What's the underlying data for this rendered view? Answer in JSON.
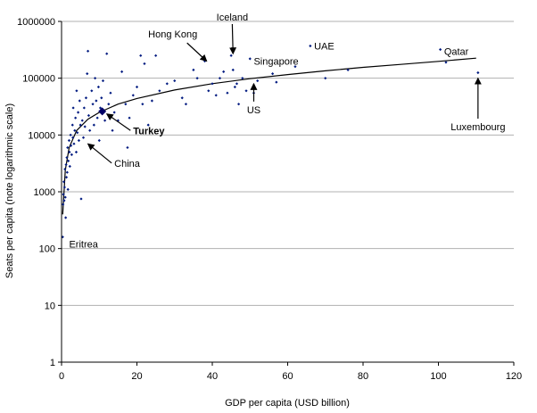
{
  "chart_data": {
    "type": "scatter",
    "xlabel": "GDP per capita (USD billion)",
    "ylabel": "Seats per capita (note logarithmic scale)",
    "xlim": [
      0,
      120
    ],
    "ylim": [
      1,
      1000000
    ],
    "yscale": "log",
    "grid": "horizontal",
    "legend": "none",
    "x_ticks": [
      "0",
      "20",
      "40",
      "60",
      "80",
      "100",
      "120"
    ],
    "y_ticks": [
      "1",
      "10",
      "100",
      "1000",
      "10000",
      "100000",
      "1000000"
    ],
    "point_color": "#001a80",
    "points": [
      {
        "x": 0.3,
        "y": 160
      },
      {
        "x": 0.4,
        "y": 600
      },
      {
        "x": 0.5,
        "y": 900
      },
      {
        "x": 0.6,
        "y": 1500
      },
      {
        "x": 0.7,
        "y": 700
      },
      {
        "x": 0.8,
        "y": 1200
      },
      {
        "x": 0.9,
        "y": 2500
      },
      {
        "x": 1.0,
        "y": 800
      },
      {
        "x": 1.1,
        "y": 350
      },
      {
        "x": 1.2,
        "y": 3000
      },
      {
        "x": 1.3,
        "y": 1800
      },
      {
        "x": 1.4,
        "y": 4000
      },
      {
        "x": 1.5,
        "y": 2200
      },
      {
        "x": 1.6,
        "y": 6000
      },
      {
        "x": 1.7,
        "y": 1100
      },
      {
        "x": 1.8,
        "y": 3500
      },
      {
        "x": 2.0,
        "y": 8000
      },
      {
        "x": 2.1,
        "y": 5000
      },
      {
        "x": 2.2,
        "y": 2800
      },
      {
        "x": 2.4,
        "y": 10000
      },
      {
        "x": 2.5,
        "y": 6500
      },
      {
        "x": 2.7,
        "y": 4500
      },
      {
        "x": 2.9,
        "y": 15000
      },
      {
        "x": 3.0,
        "y": 9000
      },
      {
        "x": 3.1,
        "y": 30000
      },
      {
        "x": 3.3,
        "y": 7000
      },
      {
        "x": 3.5,
        "y": 12000
      },
      {
        "x": 3.7,
        "y": 20000
      },
      {
        "x": 3.9,
        "y": 5000
      },
      {
        "x": 4.0,
        "y": 60000
      },
      {
        "x": 4.2,
        "y": 11000
      },
      {
        "x": 4.4,
        "y": 25000
      },
      {
        "x": 4.6,
        "y": 8000
      },
      {
        "x": 4.8,
        "y": 40000
      },
      {
        "x": 5.0,
        "y": 15000
      },
      {
        "x": 5.2,
        "y": 750
      },
      {
        "x": 5.5,
        "y": 18000
      },
      {
        "x": 5.8,
        "y": 9000
      },
      {
        "x": 6.0,
        "y": 30000
      },
      {
        "x": 6.2,
        "y": 14000
      },
      {
        "x": 6.5,
        "y": 45000
      },
      {
        "x": 6.8,
        "y": 120000
      },
      {
        "x": 7.0,
        "y": 300000
      },
      {
        "x": 7.2,
        "y": 22000
      },
      {
        "x": 7.5,
        "y": 12000
      },
      {
        "x": 7.8,
        "y": 6000
      },
      {
        "x": 8.0,
        "y": 60000
      },
      {
        "x": 8.3,
        "y": 35000
      },
      {
        "x": 8.6,
        "y": 15000
      },
      {
        "x": 8.9,
        "y": 100000
      },
      {
        "x": 9.2,
        "y": 40000
      },
      {
        "x": 9.5,
        "y": 20000
      },
      {
        "x": 9.8,
        "y": 70000
      },
      {
        "x": 10.0,
        "y": 8000
      },
      {
        "x": 10.3,
        "y": 30000
      },
      {
        "x": 10.6,
        "y": 45000
      },
      {
        "x": 11.0,
        "y": 90000
      },
      {
        "x": 11.5,
        "y": 18000
      },
      {
        "x": 12.0,
        "y": 270000
      },
      {
        "x": 12.5,
        "y": 35000
      },
      {
        "x": 13.0,
        "y": 55000
      },
      {
        "x": 13.5,
        "y": 12000
      },
      {
        "x": 14.0,
        "y": 25000
      },
      {
        "x": 15.0,
        "y": 18000
      },
      {
        "x": 16.0,
        "y": 130000
      },
      {
        "x": 17.0,
        "y": 35000
      },
      {
        "x": 17.5,
        "y": 6000
      },
      {
        "x": 18.0,
        "y": 20000
      },
      {
        "x": 19.0,
        "y": 50000
      },
      {
        "x": 20.0,
        "y": 70000
      },
      {
        "x": 21.0,
        "y": 250000
      },
      {
        "x": 21.5,
        "y": 35000
      },
      {
        "x": 22.0,
        "y": 180000
      },
      {
        "x": 23.0,
        "y": 15000
      },
      {
        "x": 24.0,
        "y": 40000
      },
      {
        "x": 25.0,
        "y": 250000
      },
      {
        "x": 26.0,
        "y": 60000
      },
      {
        "x": 28.0,
        "y": 80000
      },
      {
        "x": 30.0,
        "y": 90000
      },
      {
        "x": 32.0,
        "y": 45000
      },
      {
        "x": 33.0,
        "y": 35000
      },
      {
        "x": 35.0,
        "y": 140000
      },
      {
        "x": 36.0,
        "y": 100000
      },
      {
        "x": 38.0,
        "y": 200000
      },
      {
        "x": 39.0,
        "y": 60000
      },
      {
        "x": 40.0,
        "y": 80000
      },
      {
        "x": 41.0,
        "y": 50000
      },
      {
        "x": 42.0,
        "y": 100000
      },
      {
        "x": 43.0,
        "y": 130000
      },
      {
        "x": 44.0,
        "y": 55000
      },
      {
        "x": 45.0,
        "y": 250000
      },
      {
        "x": 45.5,
        "y": 140000
      },
      {
        "x": 46.0,
        "y": 70000
      },
      {
        "x": 46.5,
        "y": 80000
      },
      {
        "x": 47.0,
        "y": 35000
      },
      {
        "x": 48.0,
        "y": 100000
      },
      {
        "x": 49.0,
        "y": 60000
      },
      {
        "x": 50.0,
        "y": 220000
      },
      {
        "x": 51.0,
        "y": 55000
      },
      {
        "x": 52.0,
        "y": 90000
      },
      {
        "x": 56.0,
        "y": 120000
      },
      {
        "x": 57.0,
        "y": 85000
      },
      {
        "x": 62.0,
        "y": 160000
      },
      {
        "x": 66.0,
        "y": 370000
      },
      {
        "x": 70.0,
        "y": 100000
      },
      {
        "x": 76.0,
        "y": 140000
      },
      {
        "x": 100.5,
        "y": 320000
      },
      {
        "x": 102.0,
        "y": 190000
      },
      {
        "x": 110.5,
        "y": 125000
      }
    ],
    "highlight": {
      "name": "Turkey",
      "x": 10.8,
      "y": 26000
    },
    "trendline": [
      {
        "x": 0.3,
        "y": 400
      },
      {
        "x": 1,
        "y": 2400
      },
      {
        "x": 2,
        "y": 6000
      },
      {
        "x": 4,
        "y": 12000
      },
      {
        "x": 7,
        "y": 19000
      },
      {
        "x": 10,
        "y": 25000
      },
      {
        "x": 15,
        "y": 35000
      },
      {
        "x": 20,
        "y": 44000
      },
      {
        "x": 30,
        "y": 62000
      },
      {
        "x": 40,
        "y": 80000
      },
      {
        "x": 50,
        "y": 98000
      },
      {
        "x": 60,
        "y": 116000
      },
      {
        "x": 70,
        "y": 135000
      },
      {
        "x": 80,
        "y": 155000
      },
      {
        "x": 90,
        "y": 175000
      },
      {
        "x": 100,
        "y": 198000
      },
      {
        "x": 110,
        "y": 225000
      }
    ],
    "annotations": [
      {
        "text": "Iceland",
        "x": 45.3,
        "y": 1200000,
        "anchor": "middle",
        "bold": false,
        "arrow_to": [
          45.5,
          270000
        ]
      },
      {
        "text": "Hong Kong",
        "x": 23,
        "y": 600000,
        "anchor": "start",
        "bold": false,
        "arrow_to": [
          38.5,
          200000
        ]
      },
      {
        "text": "UAE",
        "x": 67,
        "y": 370000,
        "anchor": "start",
        "bold": false,
        "arrow_to": null
      },
      {
        "text": "Singapore",
        "x": 51,
        "y": 200000,
        "anchor": "start",
        "bold": false,
        "arrow_to": null
      },
      {
        "text": "Qatar",
        "x": 101.5,
        "y": 300000,
        "anchor": "start",
        "bold": false,
        "arrow_to": null
      },
      {
        "text": "US",
        "x": 51,
        "y": 28000,
        "anchor": "middle",
        "bold": false,
        "arrow_to": [
          51,
          80000
        ]
      },
      {
        "text": "Luxembourg",
        "x": 110.5,
        "y": 14000,
        "anchor": "middle",
        "bold": false,
        "arrow_to": [
          110.5,
          100000
        ]
      },
      {
        "text": "Turkey",
        "x": 19,
        "y": 12000,
        "anchor": "start",
        "bold": true,
        "arrow_to": [
          12,
          23500
        ]
      },
      {
        "text": "China",
        "x": 14,
        "y": 3200,
        "anchor": "start",
        "bold": false,
        "arrow_to": [
          7,
          7000
        ]
      },
      {
        "text": "Eritrea",
        "x": 2,
        "y": 120,
        "anchor": "start",
        "bold": false,
        "arrow_to": null
      }
    ]
  }
}
